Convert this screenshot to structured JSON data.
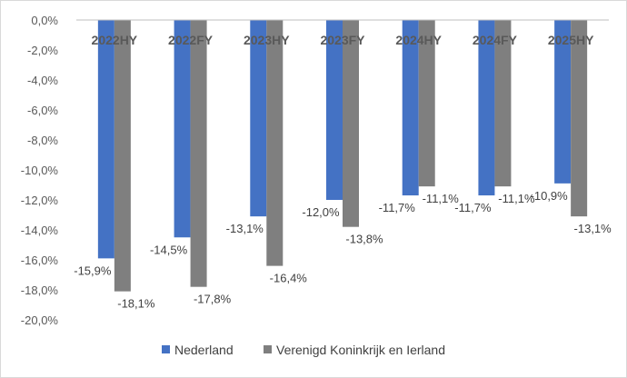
{
  "chart_data": {
    "type": "bar",
    "categories": [
      "2022HY",
      "2022FY",
      "2023HY",
      "2023FY",
      "2024HY",
      "2024FY",
      "2025HY"
    ],
    "series": [
      {
        "name": "Nederland",
        "values": [
          -15.9,
          -14.5,
          -13.1,
          -12.0,
          -11.7,
          -11.7,
          -10.9
        ],
        "labels": [
          "-15,9%",
          "-14,5%",
          "-13,1%",
          "-12,0%",
          "-11,7%",
          "-11,7%",
          "-10,9%"
        ],
        "color": "#4472C4"
      },
      {
        "name": "Verenigd Koninkrijk en Ierland",
        "values": [
          -18.1,
          -17.8,
          -16.4,
          -13.8,
          -11.1,
          -11.1,
          -13.1
        ],
        "labels": [
          "-18,1%",
          "-17,8%",
          "-16,4%",
          "-13,8%",
          "-11,1%",
          "-11,1%",
          "-13,1%"
        ],
        "color": "#7F7F7F"
      }
    ],
    "ylim": [
      -20,
      0
    ],
    "yticks": [
      0,
      -2,
      -4,
      -6,
      -8,
      -10,
      -12,
      -14,
      -16,
      -18,
      -20
    ],
    "ytick_labels": [
      "0,0%",
      "-2,0%",
      "-4,0%",
      "-6,0%",
      "-8,0%",
      "-10,0%",
      "-12,0%",
      "-14,0%",
      "-16,0%",
      "-18,0%",
      "-20,0%"
    ],
    "xlabel": "",
    "ylabel": "",
    "grid": false,
    "legend": "bottom"
  }
}
